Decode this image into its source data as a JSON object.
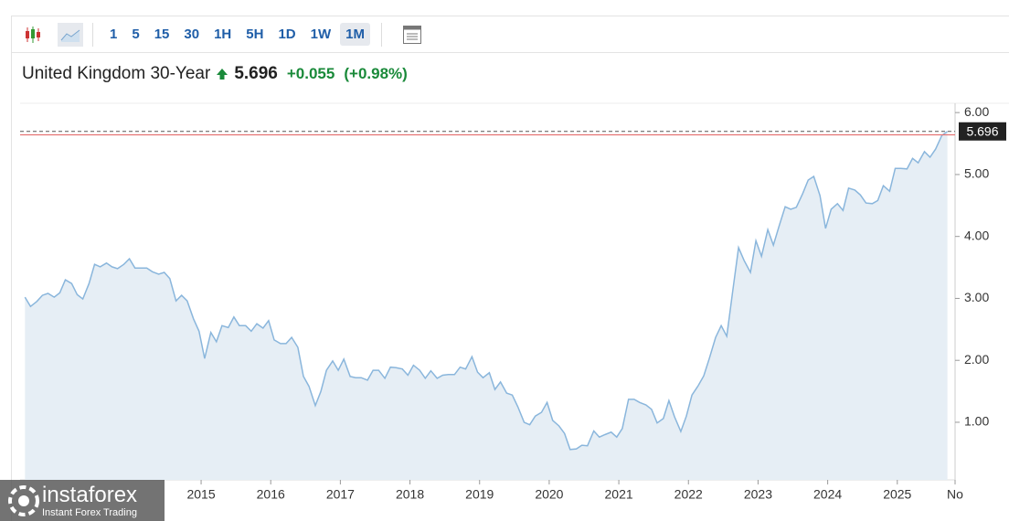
{
  "toolbar": {
    "timeframes": [
      "1",
      "5",
      "15",
      "30",
      "1H",
      "5H",
      "1D",
      "1W",
      "1M"
    ],
    "active": "1M"
  },
  "header": {
    "instrument": "United Kingdom 30-Year",
    "price": "5.696",
    "change": "+0.055",
    "change_pct": "(+0.98%)"
  },
  "watermark": {
    "brand": "instaforex",
    "tagline": "Instant Forex Trading"
  },
  "chart_data": {
    "type": "area",
    "color": "#8ab6dc",
    "fill": "#e6eef5",
    "last_value": 5.696,
    "last_label_color": "#222",
    "reference_line": 5.641,
    "reference_color": "#e57373",
    "xlim": [
      2012.4,
      2025.83
    ],
    "ylim": [
      0.07,
      6.15
    ],
    "xticks": [
      2015,
      2016,
      2017,
      2018,
      2019,
      2020,
      2021,
      2022,
      2023,
      2024,
      2025,
      {
        "value": 2025.83,
        "label": "No"
      }
    ],
    "yticks": [
      {
        "value": 1,
        "label": "1.00"
      },
      {
        "value": 2,
        "label": "2.00"
      },
      {
        "value": 3,
        "label": "3.00"
      },
      {
        "value": 4,
        "label": "4.00"
      },
      {
        "value": 5,
        "label": "5.00"
      },
      {
        "value": 6,
        "label": "6.00"
      }
    ],
    "x": [
      2012.47,
      2012.55,
      2012.64,
      2012.72,
      2012.8,
      2012.89,
      2012.97,
      2013.05,
      2013.14,
      2013.22,
      2013.3,
      2013.39,
      2013.47,
      2013.55,
      2013.64,
      2013.72,
      2013.8,
      2013.89,
      2013.97,
      2014.05,
      2014.14,
      2014.22,
      2014.3,
      2014.39,
      2014.47,
      2014.55,
      2014.64,
      2014.72,
      2014.8,
      2014.89,
      2014.97,
      2015.05,
      2015.14,
      2015.22,
      2015.3,
      2015.39,
      2015.47,
      2015.55,
      2015.64,
      2015.72,
      2015.8,
      2015.89,
      2015.97,
      2016.05,
      2016.14,
      2016.22,
      2016.3,
      2016.39,
      2016.47,
      2016.55,
      2016.64,
      2016.72,
      2016.8,
      2016.89,
      2016.97,
      2017.05,
      2017.14,
      2017.22,
      2017.3,
      2017.39,
      2017.47,
      2017.55,
      2017.64,
      2017.72,
      2017.8,
      2017.89,
      2017.97,
      2018.05,
      2018.14,
      2018.22,
      2018.3,
      2018.39,
      2018.47,
      2018.55,
      2018.64,
      2018.72,
      2018.8,
      2018.89,
      2018.97,
      2019.05,
      2019.14,
      2019.22,
      2019.3,
      2019.39,
      2019.47,
      2019.55,
      2019.64,
      2019.72,
      2019.8,
      2019.89,
      2019.97,
      2020.05,
      2020.14,
      2020.22,
      2020.3,
      2020.39,
      2020.47,
      2020.55,
      2020.64,
      2020.72,
      2020.8,
      2020.89,
      2020.97,
      2021.05,
      2021.14,
      2021.22,
      2021.3,
      2021.39,
      2021.47,
      2021.55,
      2021.64,
      2021.72,
      2021.8,
      2021.89,
      2021.97,
      2022.05,
      2022.14,
      2022.22,
      2022.3,
      2022.39,
      2022.47,
      2022.55,
      2022.64,
      2022.72,
      2022.8,
      2022.89,
      2022.97,
      2023.05,
      2023.14,
      2023.22,
      2023.3,
      2023.39,
      2023.47,
      2023.55,
      2023.64,
      2023.72,
      2023.8,
      2023.89,
      2023.97,
      2024.05,
      2024.14,
      2024.22,
      2024.3,
      2024.39,
      2024.47,
      2024.55,
      2024.64,
      2024.72,
      2024.8,
      2024.89,
      2024.97,
      2025.05,
      2025.14,
      2025.22,
      2025.3,
      2025.39,
      2025.47,
      2025.55,
      2025.64,
      2025.72
    ],
    "values": [
      3.02,
      2.87,
      2.95,
      3.05,
      3.08,
      3.02,
      3.09,
      3.3,
      3.24,
      3.06,
      2.99,
      3.24,
      3.55,
      3.51,
      3.57,
      3.51,
      3.48,
      3.55,
      3.64,
      3.49,
      3.49,
      3.49,
      3.43,
      3.39,
      3.42,
      3.32,
      2.96,
      3.05,
      2.96,
      2.67,
      2.47,
      2.03,
      2.45,
      2.3,
      2.56,
      2.53,
      2.7,
      2.56,
      2.56,
      2.47,
      2.59,
      2.52,
      2.64,
      2.33,
      2.27,
      2.27,
      2.37,
      2.21,
      1.74,
      1.58,
      1.27,
      1.5,
      1.84,
      1.99,
      1.84,
      2.02,
      1.74,
      1.72,
      1.72,
      1.68,
      1.84,
      1.84,
      1.71,
      1.89,
      1.88,
      1.86,
      1.76,
      1.92,
      1.84,
      1.71,
      1.83,
      1.71,
      1.76,
      1.77,
      1.77,
      1.89,
      1.86,
      2.06,
      1.81,
      1.72,
      1.8,
      1.53,
      1.65,
      1.47,
      1.44,
      1.25,
      1.0,
      0.96,
      1.1,
      1.16,
      1.32,
      1.03,
      0.94,
      0.82,
      0.56,
      0.57,
      0.63,
      0.62,
      0.86,
      0.76,
      0.8,
      0.84,
      0.76,
      0.9,
      1.37,
      1.37,
      1.32,
      1.28,
      1.21,
      0.99,
      1.06,
      1.35,
      1.09,
      0.85,
      1.1,
      1.44,
      1.59,
      1.75,
      2.03,
      2.37,
      2.56,
      2.39,
      3.15,
      3.82,
      3.61,
      3.42,
      3.93,
      3.68,
      4.11,
      3.86,
      4.16,
      4.48,
      4.44,
      4.47,
      4.69,
      4.91,
      4.97,
      4.66,
      4.13,
      4.44,
      4.53,
      4.42,
      4.78,
      4.75,
      4.67,
      4.54,
      4.53,
      4.58,
      4.82,
      4.73,
      5.1,
      5.1,
      5.09,
      5.26,
      5.19,
      5.37,
      5.28,
      5.41,
      5.63,
      5.696
    ]
  }
}
